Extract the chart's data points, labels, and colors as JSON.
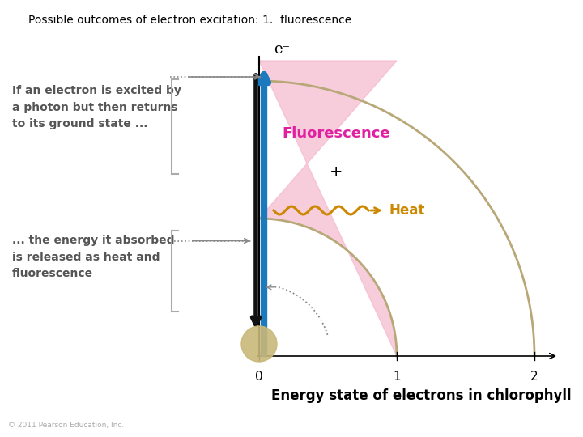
{
  "title": "Possible outcomes of electron excitation: 1.  fluorescence",
  "title_fontsize": 10,
  "bg_color": "#ffffff",
  "xlabel": "Energy state of electrons in chlorophyll",
  "xlabel_fontsize": 12,
  "xticks": [
    0,
    1,
    2
  ],
  "arc_color": "#b8a878",
  "pink_fill": "#f5b8cc",
  "blue_arrow_color": "#1a7abd",
  "black_arrow_color": "#111111",
  "fluorescence_label": "Fluorescence",
  "fluorescence_color": "#e020a0",
  "heat_color": "#cc8800",
  "electron_label": "e⁻",
  "plus_label": "+",
  "text1": "If an electron is excited by\na photon but then returns\nto its ground state ...",
  "text2": "... the energy it absorbed\nis released as heat and\nfluorescence",
  "copyright": "© 2011 Pearson Education, Inc.",
  "dotted_color": "#888888",
  "ground_circle_color": "#c8b878",
  "text_color": "#555555"
}
